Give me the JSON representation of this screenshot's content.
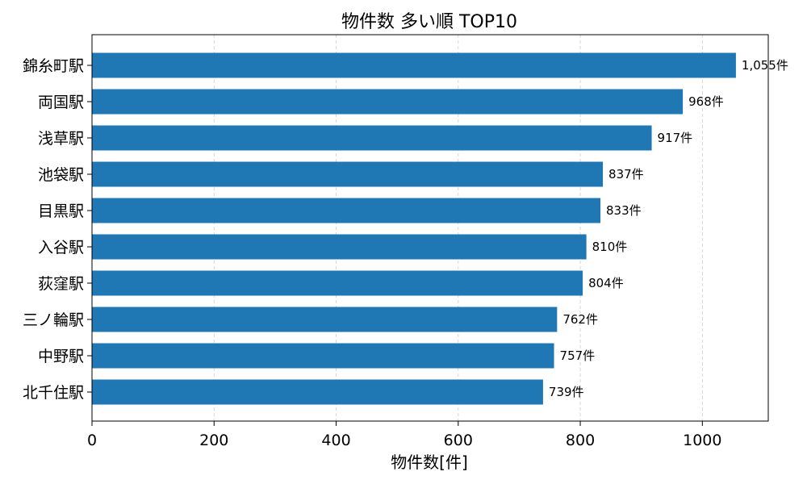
{
  "chart_data": {
    "type": "bar",
    "orientation": "horizontal",
    "title": "物件数 多い順 TOP10",
    "xlabel": "物件数[件]",
    "ylabel": "",
    "categories": [
      "錦糸町駅",
      "両国駅",
      "浅草駅",
      "池袋駅",
      "目黒駅",
      "入谷駅",
      "荻窪駅",
      "三ノ輪駅",
      "中野駅",
      "北千住駅"
    ],
    "values": [
      1055,
      968,
      917,
      837,
      833,
      810,
      804,
      762,
      757,
      739
    ],
    "data_labels": [
      "1,055件",
      "968件",
      "917件",
      "837件",
      "833件",
      "810件",
      "804件",
      "762件",
      "757件",
      "739件"
    ],
    "xlim": [
      0,
      1108
    ],
    "xticks": [
      0,
      200,
      400,
      600,
      800,
      1000
    ],
    "xtick_labels": [
      "0",
      "200",
      "400",
      "600",
      "800",
      "1000"
    ],
    "grid": "vertical dashed",
    "legend": "none",
    "bar_color": "#1f77b4"
  }
}
